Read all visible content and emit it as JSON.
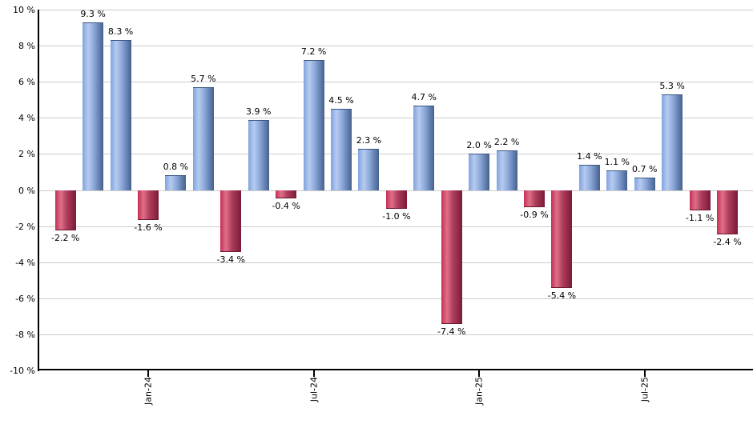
{
  "chart_data": {
    "type": "bar",
    "title": "",
    "unit": "%",
    "values": [
      -2.2,
      9.3,
      8.3,
      -1.6,
      0.8,
      5.7,
      -3.4,
      3.9,
      -0.4,
      7.2,
      4.5,
      2.3,
      -1.0,
      4.7,
      -7.4,
      2.0,
      2.2,
      -0.9,
      -5.4,
      1.4,
      1.1,
      0.7,
      5.3,
      -1.1,
      -2.4
    ],
    "value_labels": [
      "-2.2 %",
      "9.3 %",
      "8.3 %",
      "-1.6 %",
      "0.8 %",
      "5.7 %",
      "-3.4 %",
      "3.9 %",
      "-0.4 %",
      "7.2 %",
      "4.5 %",
      "2.3 %",
      "-1.0 %",
      "4.7 %",
      "-7.4 %",
      "2.0 %",
      "2.2 %",
      "-0.9 %",
      "-5.4 %",
      "1.4 %",
      "1.1 %",
      "0.7 %",
      "5.3 %",
      "-1.1 %",
      "-2.4 %"
    ],
    "x_ticks": [
      {
        "index": 3,
        "label": "Jan-24"
      },
      {
        "index": 9,
        "label": "Jul-24"
      },
      {
        "index": 15,
        "label": "Jan-25"
      },
      {
        "index": 21,
        "label": "Jul-25"
      }
    ],
    "y_ticks": [
      {
        "value": 10,
        "label": "10 %"
      },
      {
        "value": 8,
        "label": "8 %"
      },
      {
        "value": 6,
        "label": "6 %"
      },
      {
        "value": 4,
        "label": "4 %"
      },
      {
        "value": 2,
        "label": "2 %"
      },
      {
        "value": 0,
        "label": "0 %"
      },
      {
        "value": -2,
        "label": "-2 %"
      },
      {
        "value": -4,
        "label": "-4 %"
      },
      {
        "value": -6,
        "label": "-6 %"
      },
      {
        "value": -8,
        "label": "-8 %"
      },
      {
        "value": -10,
        "label": "-10 %"
      }
    ],
    "ylim": [
      -10,
      10
    ],
    "xlabel": "",
    "ylabel": "",
    "grid": "horizontal",
    "legend_position": "none",
    "colors": {
      "positive_bar_gradient": [
        "#7FA3E0",
        "#B7CBEE",
        "#8BA8DA",
        "#45618E"
      ],
      "negative_bar_gradient": [
        "#C33055",
        "#DF7089",
        "#AF3E5D",
        "#7A1B37"
      ],
      "gridline": "#CCCCCC",
      "axis": "#000000",
      "text": "#000000"
    }
  }
}
